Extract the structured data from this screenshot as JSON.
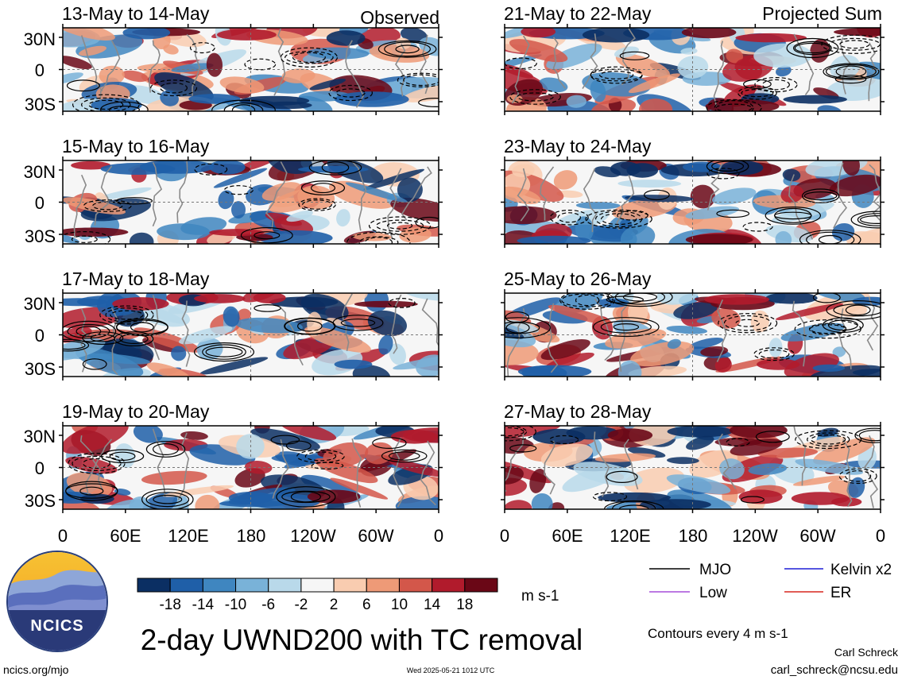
{
  "figure": {
    "main_title": "2-day UWND200 with TC removal",
    "left_header": "Observed",
    "right_header": "Projected Sum",
    "logo_text": "NCICS",
    "website": "ncics.org/mjo",
    "timestamp": "Wed 2025-05-21 1012 UTC",
    "author": "Carl Schreck",
    "email": "carl_schreck@ncsu.edu",
    "contour_note": "Contours every 4 m s-1"
  },
  "chart_data": {
    "type": "heatmap",
    "variable": "UWND200",
    "units": "m s-1",
    "xticks": [
      "0",
      "60E",
      "120E",
      "180",
      "120W",
      "60W",
      "0"
    ],
    "yticks": [
      "30N",
      "0",
      "30S"
    ],
    "colorbar": {
      "ticks": [
        "-18",
        "-14",
        "-10",
        "-6",
        "-2",
        "2",
        "6",
        "10",
        "14",
        "18"
      ],
      "colors": [
        "#0b2f63",
        "#1f5fa8",
        "#3f86c0",
        "#79b2d8",
        "#b9d9ea",
        "#f6f6f6",
        "#f9ccb0",
        "#ee9a77",
        "#d3574a",
        "#b11b2c",
        "#6a0716"
      ]
    },
    "panels": {
      "observed": [
        {
          "period": "13-May to 14-May"
        },
        {
          "period": "15-May to 16-May"
        },
        {
          "period": "17-May to 18-May"
        },
        {
          "period": "19-May to 20-May"
        }
      ],
      "projected": [
        {
          "period": "21-May to 22-May"
        },
        {
          "period": "23-May to 24-May"
        },
        {
          "period": "25-May to 26-May"
        },
        {
          "period": "27-May to 28-May"
        }
      ]
    },
    "legend": [
      {
        "label": "MJO",
        "color": "#000000"
      },
      {
        "label": "Kelvin x2",
        "color": "#1f1fd6"
      },
      {
        "label": "Low",
        "color": "#a64dd8"
      },
      {
        "label": "ER",
        "color": "#d7261e"
      }
    ]
  }
}
